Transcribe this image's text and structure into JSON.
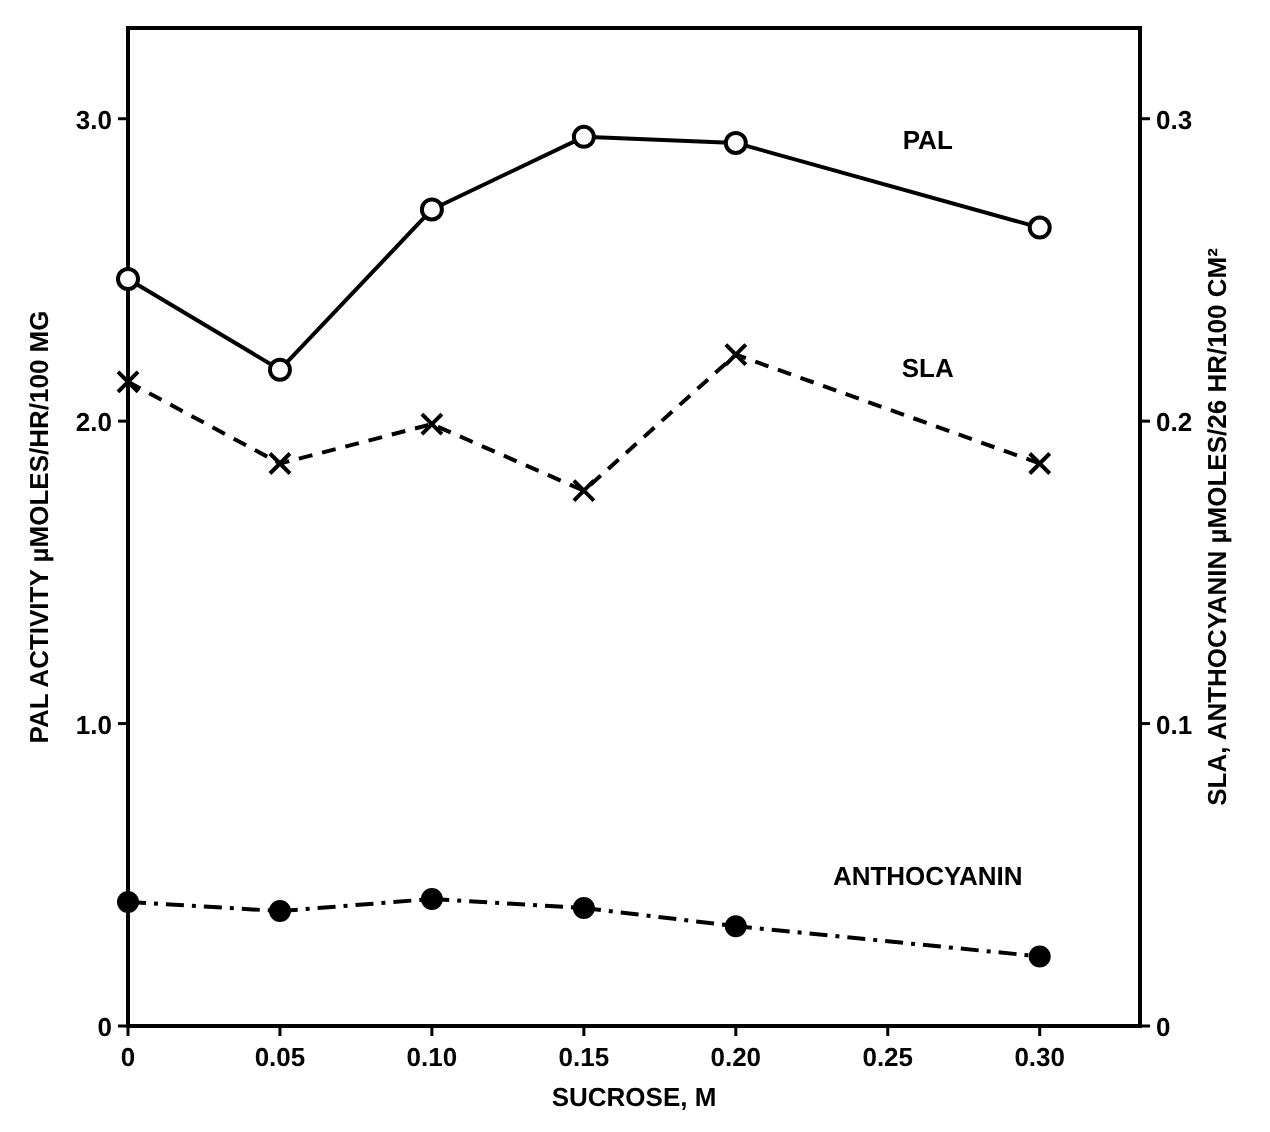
{
  "chart_data": {
    "type": "line",
    "xlabel": "SUCROSE, M",
    "ylabel": "PAL ACTIVITY µMOLES/HR/100 MG",
    "y2label": "SLA, ANTHOCYANIN µMOLES/26 HR/100 CM²",
    "x": [
      0,
      0.05,
      0.1,
      0.15,
      0.2,
      0.3
    ],
    "xlim": [
      0,
      0.333
    ],
    "xticks": [
      0,
      0.05,
      {
        "value": 0.1,
        "label": "0.10"
      },
      0.15,
      {
        "value": 0.2,
        "label": "0.20"
      },
      0.25,
      {
        "value": 0.3,
        "label": "0.30"
      }
    ],
    "ylim": [
      0,
      3.3
    ],
    "yticks": [
      0,
      {
        "value": 1,
        "label": "1.0"
      },
      {
        "value": 2,
        "label": "2.0"
      },
      {
        "value": 3,
        "label": "3.0"
      }
    ],
    "y2lim": [
      0,
      0.33
    ],
    "y2ticks": [
      0,
      0.1,
      0.2,
      0.3
    ],
    "grid": false,
    "series": [
      {
        "name": "PAL",
        "color": "#000000",
        "marker": "circle_open",
        "line_style": "solid",
        "values": [
          2.47,
          2.17,
          2.7,
          2.94,
          2.92,
          2.64
        ]
      },
      {
        "name": "SLA",
        "color": "#000000",
        "marker": "cross",
        "line_style": "dashed",
        "axis": "y2",
        "values": [
          0.213,
          0.186,
          0.199,
          0.177,
          0.222,
          0.186
        ]
      },
      {
        "name": "ANTHOCYANIN",
        "color": "#000000",
        "marker": "circle",
        "line_style": "dashdot",
        "axis": "y2",
        "values": [
          0.041,
          0.038,
          0.042,
          0.039,
          0.033,
          0.023
        ]
      }
    ]
  }
}
